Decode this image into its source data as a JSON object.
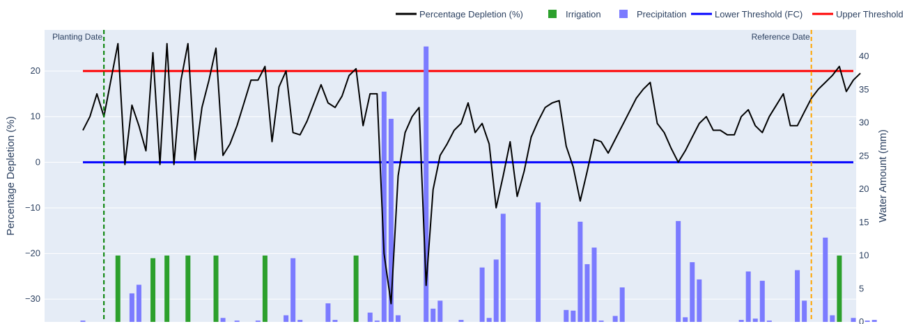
{
  "chart_data": {
    "type": "line+bar",
    "legend": {
      "placement": "top-right",
      "items": [
        {
          "label": "Percentage Depletion (%)",
          "kind": "line",
          "color": "#000000"
        },
        {
          "label": "Irrigation",
          "kind": "bar",
          "color": "#2ca02c"
        },
        {
          "label": "Precipitation",
          "kind": "bar",
          "color": "#7b7bff"
        },
        {
          "label": "Lower Threshold (FC)",
          "kind": "line",
          "color": "#0000ff"
        },
        {
          "label": "Upper Threshold",
          "kind": "line",
          "color": "#ff0000"
        }
      ]
    },
    "y_left": {
      "title": "Percentage Depletion (%)",
      "range": [
        -35,
        29
      ],
      "ticks": [
        20,
        10,
        0,
        -10,
        -20,
        -30
      ],
      "tick_labels": [
        "20",
        "10",
        "0",
        "−10",
        "−20",
        "−30"
      ]
    },
    "y_right": {
      "title": "Water Amount (mm)",
      "range": [
        0,
        44
      ],
      "ticks": [
        0,
        5,
        10,
        15,
        20,
        25,
        30,
        35,
        40
      ],
      "tick_labels": [
        "0",
        "5",
        "10",
        "15",
        "20",
        "25",
        "30",
        "35",
        "40"
      ]
    },
    "x_range": [
      0,
      111
    ],
    "grid": true,
    "annotations": [
      {
        "label": "Planting Date",
        "x": 3,
        "color": "#008000",
        "align": "right"
      },
      {
        "label": "Reference Date",
        "x": 104,
        "color": "#ffa500",
        "align": "left"
      }
    ],
    "thresholds": [
      {
        "name": "Upper Threshold",
        "y": 20,
        "x_start": 0,
        "x_end": 110,
        "color": "#ff0000"
      },
      {
        "name": "Lower Threshold (FC)",
        "y": 0,
        "x_start": 0,
        "x_end": 110,
        "color": "#0000ff"
      }
    ],
    "depletion": {
      "name": "Percentage Depletion (%)",
      "color": "#000000",
      "values": [
        7,
        10,
        15,
        10,
        18,
        26,
        -0.5,
        12.5,
        8,
        2.5,
        24,
        -0.5,
        26,
        -0.5,
        18,
        26,
        0.5,
        12,
        18,
        25,
        1.5,
        4,
        8,
        13,
        18,
        18,
        21,
        4.5,
        16.5,
        20,
        6.5,
        6,
        9,
        13,
        17,
        13,
        12,
        14.5,
        19,
        20.5,
        8,
        15,
        15,
        -20,
        -31,
        -3,
        6.5,
        10,
        12,
        -27,
        -6,
        1.5,
        4,
        7,
        8.5,
        13,
        6.5,
        8.5,
        4,
        -10,
        -3,
        4.5,
        -7.5,
        -2,
        5.5,
        9,
        12,
        13,
        13.5,
        3.5,
        -1,
        -8.5,
        -2,
        5,
        4.5,
        2,
        5,
        8,
        11,
        14,
        16,
        17.5,
        8.5,
        6.5,
        3,
        0,
        2.5,
        5.5,
        8.5,
        10,
        7,
        7,
        6,
        6,
        10,
        11.5,
        8,
        6.5,
        10,
        12.5,
        15,
        8,
        8,
        11,
        14,
        16,
        17.5,
        19,
        21,
        15.5,
        18,
        19.5
      ]
    },
    "irrigation": {
      "name": "Irrigation",
      "color": "#2ca02c",
      "points": [
        [
          5,
          10
        ],
        [
          10,
          9.6
        ],
        [
          12,
          10
        ],
        [
          15,
          10
        ],
        [
          19,
          10
        ],
        [
          26,
          10
        ],
        [
          39,
          10
        ],
        [
          108,
          10
        ]
      ]
    },
    "precipitation": {
      "name": "Precipitation",
      "color": "#7b7bff",
      "points": [
        [
          0,
          0.2
        ],
        [
          7,
          4.3
        ],
        [
          8,
          5.6
        ],
        [
          20,
          0.6
        ],
        [
          22,
          0.2
        ],
        [
          25,
          0.2
        ],
        [
          29,
          1
        ],
        [
          30,
          9.6
        ],
        [
          31,
          0.3
        ],
        [
          35,
          2.8
        ],
        [
          36,
          0.3
        ],
        [
          41,
          1.4
        ],
        [
          42,
          0.2
        ],
        [
          43,
          34.7
        ],
        [
          44,
          30.6
        ],
        [
          45,
          1
        ],
        [
          49,
          41.5
        ],
        [
          50,
          2
        ],
        [
          51,
          3.2
        ],
        [
          54,
          0.3
        ],
        [
          57,
          8.2
        ],
        [
          58,
          0.6
        ],
        [
          59,
          9.4
        ],
        [
          60,
          16.3
        ],
        [
          65,
          18
        ],
        [
          69,
          1.8
        ],
        [
          70,
          1.7
        ],
        [
          71,
          15.1
        ],
        [
          72,
          8.7
        ],
        [
          73,
          11.2
        ],
        [
          74,
          0.2
        ],
        [
          76,
          0.9
        ],
        [
          77,
          5.2
        ],
        [
          85,
          15.2
        ],
        [
          86,
          0.7
        ],
        [
          87,
          9
        ],
        [
          88,
          6.4
        ],
        [
          94,
          0.3
        ],
        [
          95,
          7.6
        ],
        [
          96,
          0.5
        ],
        [
          97,
          6.2
        ],
        [
          98,
          0.2
        ],
        [
          102,
          7.8
        ],
        [
          103,
          3.2
        ],
        [
          106,
          12.7
        ],
        [
          107,
          1
        ],
        [
          110,
          0.6
        ],
        [
          112,
          0.2
        ],
        [
          113,
          0.3
        ]
      ]
    }
  }
}
